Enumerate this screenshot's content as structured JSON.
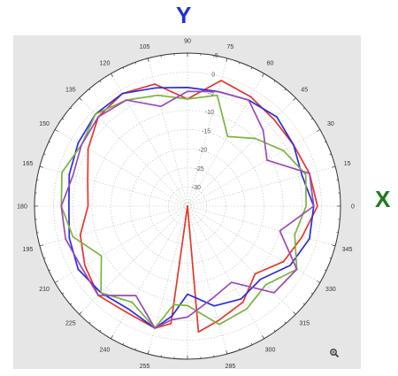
{
  "labels": {
    "top": "Y",
    "right": "X"
  },
  "colors": {
    "background": "#e6e6e6",
    "plot_face": "#ffffff",
    "y_label": "#1f2fd6",
    "x_label": "#1e7a1e",
    "grid": "#bdbdbd",
    "frame": "#333333"
  },
  "zoom_icon": "magnifier-zoom-icon",
  "chart_data": {
    "type": "polar-line",
    "angle_ticks": [
      0,
      15,
      30,
      45,
      60,
      75,
      90,
      105,
      120,
      135,
      150,
      165,
      180,
      195,
      210,
      225,
      240,
      255,
      270,
      285,
      300,
      315,
      330,
      345
    ],
    "radial_ticks": [
      5,
      0,
      -5,
      -10,
      -15,
      -20,
      -25,
      -30
    ],
    "rlim": [
      -35,
      5
    ],
    "grid": true,
    "series": [
      {
        "color": "#e8352b",
        "points": [
          [
            0,
            -1
          ],
          [
            15,
            -2
          ],
          [
            30,
            -3
          ],
          [
            45,
            -3
          ],
          [
            60,
            -2
          ],
          [
            75,
            -1
          ],
          [
            90,
            -7
          ],
          [
            105,
            -2
          ],
          [
            120,
            -1
          ],
          [
            135,
            -2
          ],
          [
            150,
            -5
          ],
          [
            165,
            -8
          ],
          [
            180,
            -9
          ],
          [
            195,
            -6
          ],
          [
            210,
            -4
          ],
          [
            225,
            -2
          ],
          [
            240,
            -3
          ],
          [
            255,
            -2
          ],
          [
            262,
            -4
          ],
          [
            270,
            -35
          ],
          [
            275,
            -2
          ],
          [
            285,
            -4
          ],
          [
            300,
            -6
          ],
          [
            315,
            -10
          ],
          [
            330,
            -6
          ],
          [
            345,
            -4
          ],
          [
            0,
            -1
          ]
        ]
      },
      {
        "color": "#2a2ee0",
        "points": [
          [
            0,
            -2
          ],
          [
            15,
            -4
          ],
          [
            30,
            -3
          ],
          [
            45,
            -2
          ],
          [
            60,
            -3
          ],
          [
            75,
            -4
          ],
          [
            90,
            -4
          ],
          [
            105,
            -3
          ],
          [
            120,
            -1
          ],
          [
            135,
            -1
          ],
          [
            150,
            -2
          ],
          [
            165,
            -3
          ],
          [
            180,
            -4
          ],
          [
            195,
            -3
          ],
          [
            210,
            -2
          ],
          [
            225,
            -3
          ],
          [
            240,
            -4
          ],
          [
            255,
            -2
          ],
          [
            262,
            -6
          ],
          [
            270,
            -12
          ],
          [
            285,
            -8
          ],
          [
            300,
            -7
          ],
          [
            315,
            -8
          ],
          [
            330,
            -4
          ],
          [
            345,
            -2
          ],
          [
            0,
            -2
          ]
        ]
      },
      {
        "color": "#7ab33e",
        "points": [
          [
            0,
            -4
          ],
          [
            15,
            -3
          ],
          [
            30,
            -6
          ],
          [
            45,
            -10
          ],
          [
            60,
            -14
          ],
          [
            75,
            -5
          ],
          [
            90,
            -7
          ],
          [
            105,
            -5
          ],
          [
            120,
            -3
          ],
          [
            135,
            -1
          ],
          [
            150,
            -3
          ],
          [
            165,
            -1
          ],
          [
            180,
            -2
          ],
          [
            195,
            -4
          ],
          [
            210,
            -9
          ],
          [
            225,
            -3
          ],
          [
            240,
            -6
          ],
          [
            255,
            -2
          ],
          [
            262,
            -9
          ],
          [
            270,
            -9
          ],
          [
            285,
            -3
          ],
          [
            300,
            -4
          ],
          [
            315,
            -6
          ],
          [
            330,
            -2
          ],
          [
            345,
            -6
          ],
          [
            0,
            -4
          ]
        ]
      },
      {
        "color": "#9a4ab8",
        "points": [
          [
            0,
            -2
          ],
          [
            15,
            -2
          ],
          [
            30,
            -11
          ],
          [
            45,
            -7
          ],
          [
            60,
            -3
          ],
          [
            75,
            -4
          ],
          [
            90,
            -5
          ],
          [
            105,
            -8
          ],
          [
            120,
            -3
          ],
          [
            135,
            -2
          ],
          [
            150,
            -3
          ],
          [
            165,
            -4
          ],
          [
            180,
            -2
          ],
          [
            195,
            -2
          ],
          [
            210,
            -3
          ],
          [
            225,
            -2
          ],
          [
            240,
            -8
          ],
          [
            255,
            -2
          ],
          [
            262,
            -5
          ],
          [
            270,
            -6
          ],
          [
            285,
            -10
          ],
          [
            300,
            -12
          ],
          [
            315,
            -3
          ],
          [
            330,
            -2
          ],
          [
            345,
            -10
          ],
          [
            0,
            -2
          ]
        ]
      }
    ]
  }
}
